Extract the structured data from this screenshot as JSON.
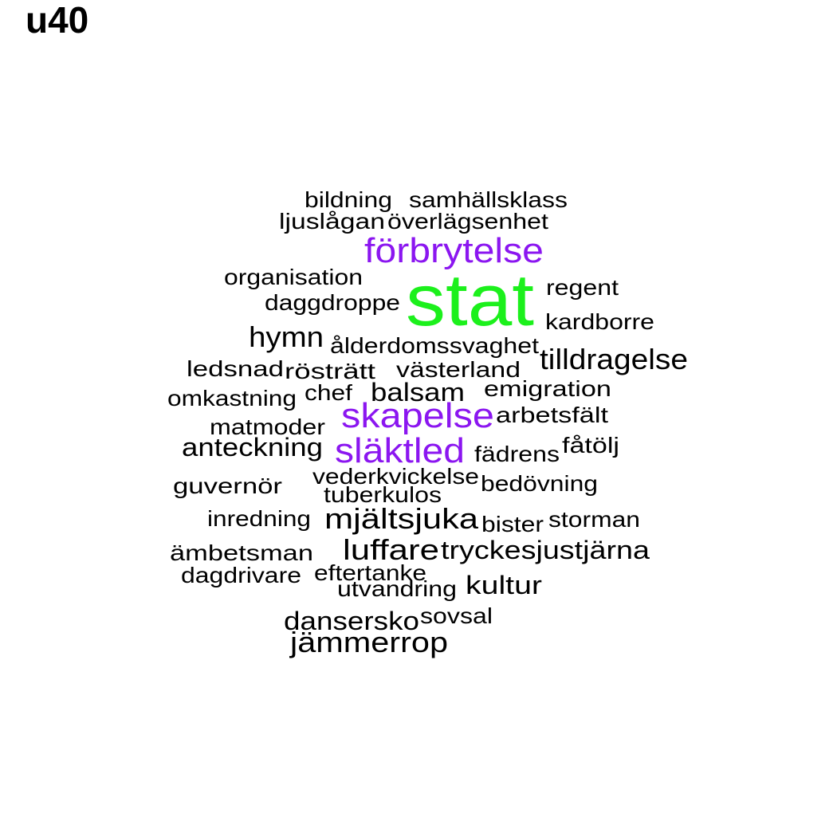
{
  "title": "u40",
  "chart_data": {
    "type": "wordcloud",
    "title": "u40",
    "colors": {
      "default": "#000000",
      "purple": "#8b16f0",
      "green": "#1cf01c"
    },
    "words": [
      {
        "text": "bildning",
        "weight": 2,
        "color": "default"
      },
      {
        "text": "samhällsklass",
        "weight": 2,
        "color": "default"
      },
      {
        "text": "ljuslågan",
        "weight": 2,
        "color": "default"
      },
      {
        "text": "överlägsenhet",
        "weight": 2,
        "color": "default"
      },
      {
        "text": "förbrytelse",
        "weight": 4,
        "color": "purple"
      },
      {
        "text": "organisation",
        "weight": 2,
        "color": "default"
      },
      {
        "text": "stat",
        "weight": 10,
        "color": "green"
      },
      {
        "text": "regent",
        "weight": 2,
        "color": "default"
      },
      {
        "text": "daggdroppe",
        "weight": 2,
        "color": "default"
      },
      {
        "text": "kardborre",
        "weight": 2,
        "color": "default"
      },
      {
        "text": "hymn",
        "weight": 3,
        "color": "default"
      },
      {
        "text": "ålderdomssvaghet",
        "weight": 2,
        "color": "default"
      },
      {
        "text": "tilldragelse",
        "weight": 3,
        "color": "default"
      },
      {
        "text": "ledsnad",
        "weight": 2,
        "color": "default"
      },
      {
        "text": "rösträtt",
        "weight": 2,
        "color": "default"
      },
      {
        "text": "västerland",
        "weight": 2,
        "color": "default"
      },
      {
        "text": "omkastning",
        "weight": 2,
        "color": "default"
      },
      {
        "text": "chef",
        "weight": 2,
        "color": "default"
      },
      {
        "text": "balsam",
        "weight": 2,
        "color": "default"
      },
      {
        "text": "emigration",
        "weight": 2,
        "color": "default"
      },
      {
        "text": "skapelse",
        "weight": 4,
        "color": "purple"
      },
      {
        "text": "arbetsfält",
        "weight": 2,
        "color": "default"
      },
      {
        "text": "matmoder",
        "weight": 2,
        "color": "default"
      },
      {
        "text": "anteckning",
        "weight": 3,
        "color": "default"
      },
      {
        "text": "släktled",
        "weight": 4,
        "color": "purple"
      },
      {
        "text": "fädrens",
        "weight": 2,
        "color": "default"
      },
      {
        "text": "fåtölj",
        "weight": 2,
        "color": "default"
      },
      {
        "text": "guvernör",
        "weight": 2,
        "color": "default"
      },
      {
        "text": "vederkvickelse",
        "weight": 2,
        "color": "default"
      },
      {
        "text": "bedövning",
        "weight": 2,
        "color": "default"
      },
      {
        "text": "tuberkulos",
        "weight": 2,
        "color": "default"
      },
      {
        "text": "inredning",
        "weight": 2,
        "color": "default"
      },
      {
        "text": "mjältsjuka",
        "weight": 3,
        "color": "default"
      },
      {
        "text": "bister",
        "weight": 2,
        "color": "default"
      },
      {
        "text": "storman",
        "weight": 2,
        "color": "default"
      },
      {
        "text": "ämbetsman",
        "weight": 2,
        "color": "default"
      },
      {
        "text": "luffare",
        "weight": 3,
        "color": "default"
      },
      {
        "text": "tryckesjustjärna",
        "weight": 3,
        "color": "default"
      },
      {
        "text": "dagdrivare",
        "weight": 2,
        "color": "default"
      },
      {
        "text": "eftertanke",
        "weight": 2,
        "color": "default"
      },
      {
        "text": "utvandring",
        "weight": 2,
        "color": "default"
      },
      {
        "text": "kultur",
        "weight": 3,
        "color": "default"
      },
      {
        "text": "dansersko",
        "weight": 2,
        "color": "default"
      },
      {
        "text": "sovsal",
        "weight": 2,
        "color": "default"
      },
      {
        "text": "jämmerrop",
        "weight": 3,
        "color": "default"
      }
    ]
  }
}
